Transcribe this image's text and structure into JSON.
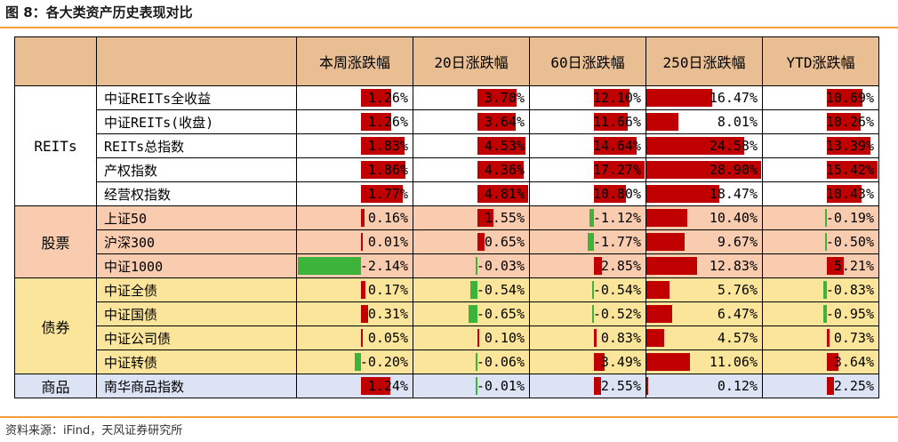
{
  "title": "图 8：各大类资产历史表现对比",
  "source": "资料来源：iFind，天风证券研究所",
  "colors": {
    "pos": "#c00000",
    "neg": "#3cb43c",
    "header": "#e9be93",
    "reits": "#ffffff",
    "equity": "#f9ccb0",
    "bond": "#fbe59a",
    "commodity": "#dbe3f4"
  },
  "chart_data": {
    "type": "table",
    "columns": [
      "本周涨跌幅",
      "20日涨跌幅",
      "60日涨跌幅",
      "250日涨跌幅",
      "YTD涨跌幅"
    ],
    "groups": [
      {
        "name": "REITs",
        "rows": [
          {
            "name": "中证REITs全收益",
            "values": [
              1.26,
              3.7,
              12.1,
              16.47,
              10.69
            ],
            "labels": [
              "1.26%",
              "3.70%",
              "12.10%",
              "16.47%",
              "10.69%"
            ]
          },
          {
            "name": "中证REITs(收盘)",
            "values": [
              1.26,
              3.64,
              11.66,
              8.01,
              10.26
            ],
            "labels": [
              "1.26%",
              "3.64%",
              "11.66%",
              "8.01%",
              "10.26%"
            ]
          },
          {
            "name": "REITs总指数",
            "values": [
              1.83,
              4.53,
              14.64,
              24.58,
              13.39
            ],
            "labels": [
              "1.83%",
              "4.53%",
              "14.64%",
              "24.58%",
              "13.39%"
            ]
          },
          {
            "name": "产权指数",
            "values": [
              1.86,
              4.36,
              17.27,
              28.9,
              15.42
            ],
            "labels": [
              "1.86%",
              "4.36%",
              "17.27%",
              "28.90%",
              "15.42%"
            ]
          },
          {
            "name": "经营权指数",
            "values": [
              1.77,
              4.81,
              10.8,
              18.47,
              10.43
            ],
            "labels": [
              "1.77%",
              "4.81%",
              "10.80%",
              "18.47%",
              "10.43%"
            ]
          }
        ]
      },
      {
        "name": "股票",
        "rows": [
          {
            "name": "上证50",
            "values": [
              0.16,
              1.55,
              -1.12,
              10.4,
              -0.19
            ],
            "labels": [
              "0.16%",
              "1.55%",
              "-1.12%",
              "10.40%",
              "-0.19%"
            ]
          },
          {
            "name": "沪深300",
            "values": [
              0.01,
              0.65,
              -1.77,
              9.67,
              -0.5
            ],
            "labels": [
              "0.01%",
              "0.65%",
              "-1.77%",
              "9.67%",
              "-0.50%"
            ]
          },
          {
            "name": "中证1000",
            "values": [
              -2.14,
              -0.03,
              2.85,
              12.83,
              5.21
            ],
            "labels": [
              "-2.14%",
              "-0.03%",
              "2.85%",
              "12.83%",
              "5.21%"
            ]
          }
        ]
      },
      {
        "name": "债券",
        "rows": [
          {
            "name": "中证全债",
            "values": [
              0.17,
              -0.54,
              -0.54,
              5.76,
              -0.83
            ],
            "labels": [
              "0.17%",
              "-0.54%",
              "-0.54%",
              "5.76%",
              "-0.83%"
            ]
          },
          {
            "name": "中证国债",
            "values": [
              0.31,
              -0.65,
              -0.52,
              6.47,
              -0.95
            ],
            "labels": [
              "0.31%",
              "-0.65%",
              "-0.52%",
              "6.47%",
              "-0.95%"
            ]
          },
          {
            "name": "中证公司债",
            "values": [
              0.05,
              0.1,
              0.83,
              4.57,
              0.73
            ],
            "labels": [
              "0.05%",
              "0.10%",
              "0.83%",
              "4.57%",
              "0.73%"
            ]
          },
          {
            "name": "中证转债",
            "values": [
              -0.2,
              -0.06,
              3.49,
              11.06,
              3.64
            ],
            "labels": [
              "-0.20%",
              "-0.06%",
              "3.49%",
              "11.06%",
              "3.64%"
            ]
          }
        ]
      },
      {
        "name": "商品",
        "rows": [
          {
            "name": "南华商品指数",
            "values": [
              1.24,
              -0.01,
              2.55,
              0.12,
              2.25
            ],
            "labels": [
              "1.24%",
              "-0.01%",
              "2.55%",
              "0.12%",
              "2.25%"
            ]
          }
        ]
      }
    ]
  }
}
